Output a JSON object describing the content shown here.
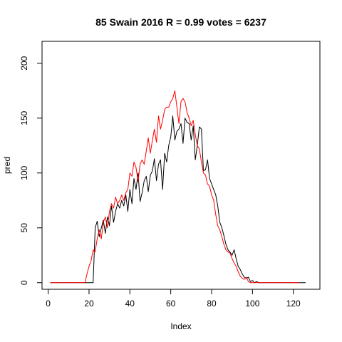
{
  "chart_data": {
    "type": "line",
    "title": "85 Swain 2016 R = 0.99 votes = 6237",
    "xlabel": "Index",
    "ylabel": "pred",
    "xlim": [
      -3,
      133
    ],
    "ylim": [
      -6,
      220
    ],
    "xticks": [
      0,
      20,
      40,
      60,
      80,
      100,
      120
    ],
    "yticks": [
      0,
      50,
      100,
      150,
      200
    ],
    "grid": false,
    "series": [
      {
        "color": "#000000",
        "values": [
          0,
          0,
          0,
          0,
          0,
          0,
          0,
          0,
          0,
          0,
          0,
          0,
          0,
          0,
          0,
          0,
          0,
          0,
          0,
          0,
          0,
          0,
          50,
          56,
          42,
          50,
          57,
          45,
          60,
          52,
          70,
          55,
          65,
          72,
          68,
          75,
          70,
          80,
          65,
          85,
          72,
          95,
          85,
          100,
          74,
          82,
          93,
          97,
          83,
          98,
          102,
          113,
          93,
          108,
          112,
          85,
          118,
          110,
          125,
          133,
          152,
          130,
          138,
          140,
          145,
          127,
          150,
          146,
          145,
          130,
          143,
          112,
          125,
          142,
          140,
          102,
          103,
          112,
          95,
          90,
          85,
          80,
          70,
          55,
          50,
          43,
          35,
          30,
          28,
          25,
          30,
          22,
          15,
          12,
          8,
          5,
          4,
          5,
          1,
          2,
          0,
          1,
          0,
          0,
          0,
          0,
          0,
          0,
          0,
          0,
          0,
          0,
          0,
          0,
          0,
          0,
          0,
          0,
          0,
          0,
          0,
          0,
          0,
          0,
          0,
          0
        ]
      },
      {
        "color": "#ff0000",
        "values": [
          0,
          0,
          0,
          0,
          0,
          0,
          0,
          0,
          0,
          0,
          0,
          0,
          0,
          0,
          0,
          0,
          0,
          0,
          8,
          15,
          20,
          30,
          28,
          40,
          48,
          40,
          55,
          60,
          50,
          65,
          72,
          68,
          78,
          72,
          75,
          80,
          75,
          82,
          85,
          100,
          97,
          110,
          105,
          92,
          108,
          112,
          108,
          120,
          132,
          118,
          130,
          140,
          128,
          152,
          140,
          148,
          158,
          160,
          160,
          165,
          168,
          175,
          160,
          145,
          165,
          168,
          165,
          155,
          150,
          143,
          148,
          135,
          125,
          122,
          110,
          100,
          98,
          90,
          88,
          80,
          75,
          62,
          52,
          48,
          42,
          35,
          30,
          28,
          27,
          22,
          18,
          15,
          10,
          6,
          4,
          3,
          5,
          1,
          0,
          0,
          0,
          0,
          0,
          0,
          0,
          0,
          0,
          0,
          0,
          0,
          0,
          0,
          0,
          0,
          0,
          0,
          0,
          0,
          0,
          0,
          0,
          0,
          0
        ]
      }
    ]
  }
}
